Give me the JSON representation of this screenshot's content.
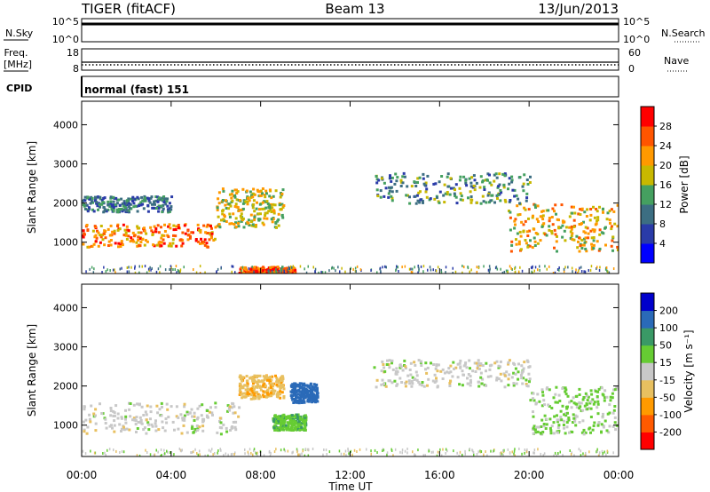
{
  "header": {
    "station": "TIGER (fitACF)",
    "beam": "Beam 13",
    "date": "13/Jun/2013"
  },
  "top_panels": {
    "nsky": {
      "label": "N.Sky",
      "ticks_left": [
        "10^5",
        "10^0"
      ],
      "ticks_right": [
        "10^5",
        "10^0"
      ],
      "right_label": "N.Search"
    },
    "freq": {
      "label_top": "Freq.",
      "label_bottom": "[MHz]",
      "ticks_left": [
        "18",
        "8"
      ],
      "ticks_right": [
        "60",
        "0"
      ],
      "right_label": "Nave"
    },
    "cpid": {
      "label": "CPID",
      "value": "normal (fast) 151"
    }
  },
  "colors": {
    "power_scale": [
      "#0000ff",
      "#2a3ba8",
      "#3c6e82",
      "#45a060",
      "#c8b800",
      "#ff9900",
      "#ff5500",
      "#ff0000"
    ],
    "velocity_scale": [
      "#ff0000",
      "#ff5a00",
      "#ff9a00",
      "#e8c060",
      "#c8c8c8",
      "#66cc33",
      "#3a9966",
      "#2a6ab8",
      "#0000cc"
    ]
  },
  "chart_data": [
    {
      "type": "heatmap",
      "title": "Power",
      "xlabel": "Time UT",
      "ylabel": "Slant Range [km]",
      "x_ticks": [
        "00:00",
        "04:00",
        "08:00",
        "12:00",
        "16:00",
        "20:00",
        "00:00"
      ],
      "xlim": [
        0,
        24
      ],
      "ylim": [
        200,
        4600
      ],
      "y_ticks": [
        1000,
        2000,
        3000,
        4000
      ],
      "colorbar": {
        "label": "Power [dB]",
        "ticks": [
          4,
          8,
          12,
          16,
          20,
          24,
          28
        ],
        "range": [
          0,
          32
        ]
      },
      "features": [
        {
          "t": [
            0,
            6
          ],
          "range_km": [
            900,
            1500
          ],
          "power_db": 24
        },
        {
          "t": [
            0,
            4
          ],
          "range_km": [
            1800,
            2200
          ],
          "power_db": 10
        },
        {
          "t": [
            6,
            9
          ],
          "range_km": [
            1400,
            2400
          ],
          "power_db": 18
        },
        {
          "t": [
            7,
            9.5
          ],
          "range_km": [
            200,
            400
          ],
          "power_db": 26
        },
        {
          "t": [
            13,
            20
          ],
          "range_km": [
            2000,
            2800
          ],
          "power_db": 12
        },
        {
          "t": [
            19,
            24
          ],
          "range_km": [
            800,
            2000
          ],
          "power_db": 20
        }
      ]
    },
    {
      "type": "heatmap",
      "title": "Velocity",
      "xlabel": "Time UT",
      "ylabel": "Slant Range [km]",
      "x_ticks": [
        "00:00",
        "04:00",
        "08:00",
        "12:00",
        "16:00",
        "20:00",
        "00:00"
      ],
      "xlim": [
        0,
        24
      ],
      "ylim": [
        200,
        4600
      ],
      "y_ticks": [
        1000,
        2000,
        3000,
        4000
      ],
      "colorbar": {
        "label": "Velocity [m s⁻¹]",
        "ticks": [
          200,
          100,
          50,
          15,
          -15,
          -50,
          -100,
          -200
        ]
      },
      "features": [
        {
          "t": [
            0,
            7
          ],
          "range_km": [
            800,
            1600
          ],
          "velocity_ms": 0
        },
        {
          "t": [
            7,
            9
          ],
          "range_km": [
            1700,
            2300
          ],
          "velocity_ms": -40
        },
        {
          "t": [
            9.3,
            10.5
          ],
          "range_km": [
            1600,
            2100
          ],
          "velocity_ms": 180
        },
        {
          "t": [
            8.5,
            10
          ],
          "range_km": [
            900,
            1300
          ],
          "velocity_ms": 40
        },
        {
          "t": [
            13,
            20
          ],
          "range_km": [
            2000,
            2700
          ],
          "velocity_ms": 0
        },
        {
          "t": [
            20,
            24
          ],
          "range_km": [
            800,
            2000
          ],
          "velocity_ms": 20
        }
      ]
    }
  ]
}
